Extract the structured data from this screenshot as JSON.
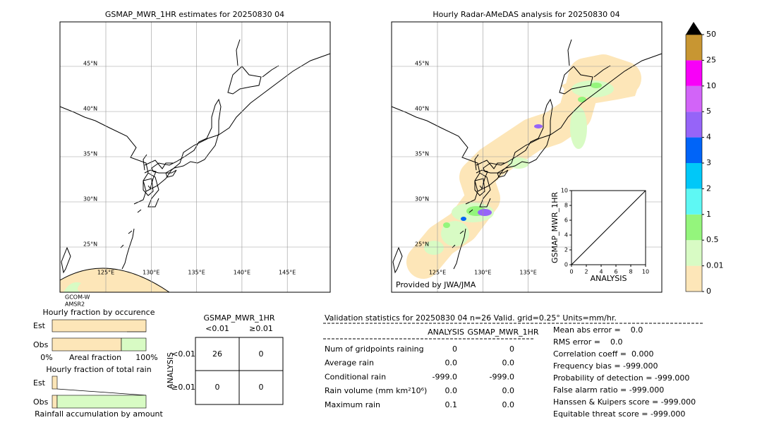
{
  "left_map": {
    "title": "GSMAP_MWR_1HR estimates for 20250830 04",
    "lat_labels": [
      "45°N",
      "40°N",
      "35°N",
      "30°N",
      "25°N"
    ],
    "lon_labels": [
      "125°E",
      "130°E",
      "135°E",
      "140°E",
      "145°E"
    ],
    "satellite_labels": [
      "GCOM-W",
      "AMSR2"
    ]
  },
  "right_map": {
    "title": "Hourly Radar-AMeDAS analysis for 20250830 04",
    "lat_labels": [
      "45°N",
      "40°N",
      "35°N",
      "30°N",
      "25°N"
    ],
    "lon_labels": [
      "125°E",
      "130°E",
      "135°E"
    ],
    "credit": "Provided by JWA/JMA"
  },
  "inset": {
    "xlabel": "ANALYSIS",
    "ylabel": "GSMAP_MWR_1HR",
    "xlim": [
      0,
      10
    ],
    "ylim": [
      0,
      10
    ],
    "xticks": [
      0,
      2,
      4,
      6,
      8,
      10
    ],
    "yticks": [
      0,
      2,
      4,
      6,
      8,
      10
    ]
  },
  "colorbar": {
    "ticks": [
      0,
      0.01,
      0.5,
      1,
      2,
      3,
      4,
      5,
      10,
      25,
      50
    ],
    "colors": [
      "#fde6b8",
      "#d8fbc4",
      "#94f57c",
      "#5ef8f4",
      "#00c8f8",
      "#0064f8",
      "#9664f8",
      "#d264f8",
      "#f800f8",
      "#c89632"
    ]
  },
  "fraction_occurrence": {
    "title": "Hourly fraction by occurence",
    "rows": [
      "Est",
      "Obs"
    ],
    "axis_labels": [
      "0%",
      "Areal fraction",
      "100%"
    ]
  },
  "fraction_total": {
    "title": "Hourly fraction of total rain",
    "rows": [
      "Est",
      "Obs"
    ],
    "xlabel": "Rainfall accumulation by amount"
  },
  "contingency": {
    "title": "GSMAP_MWR_1HR",
    "col_headers": [
      "<0.01",
      "≥0.01"
    ],
    "row_axis": "ANALYSIS",
    "row_headers": [
      "<0.01",
      "≥0.01"
    ],
    "cells": [
      [
        26,
        0
      ],
      [
        0,
        0
      ]
    ]
  },
  "validation": {
    "header": "Validation statistics for 20250830 04  n=26 Valid. grid=0.25° Units=mm/hr.",
    "columns": [
      "ANALYSIS",
      "GSMAP_MWR_1HR"
    ],
    "rows": [
      [
        "Num of gridpoints raining",
        "0",
        "0"
      ],
      [
        "Average rain",
        "0.0",
        "0.0"
      ],
      [
        "Conditional rain",
        "-999.0",
        "-999.0"
      ],
      [
        "Rain volume (mm km²10⁶)",
        "0.0",
        "0.0"
      ],
      [
        "Maximum rain",
        "0.1",
        "0.0"
      ]
    ],
    "scores": [
      "Mean abs error =    0.0",
      "RMS error =    0.0",
      "Correlation coeff =  0.000",
      "Frequency bias = -999.000",
      "Probability of detection = -999.000",
      "False alarm ratio = -999.000",
      "Hanssen & Kuipers score = -999.000",
      "Equitable threat score = -999.000"
    ]
  }
}
